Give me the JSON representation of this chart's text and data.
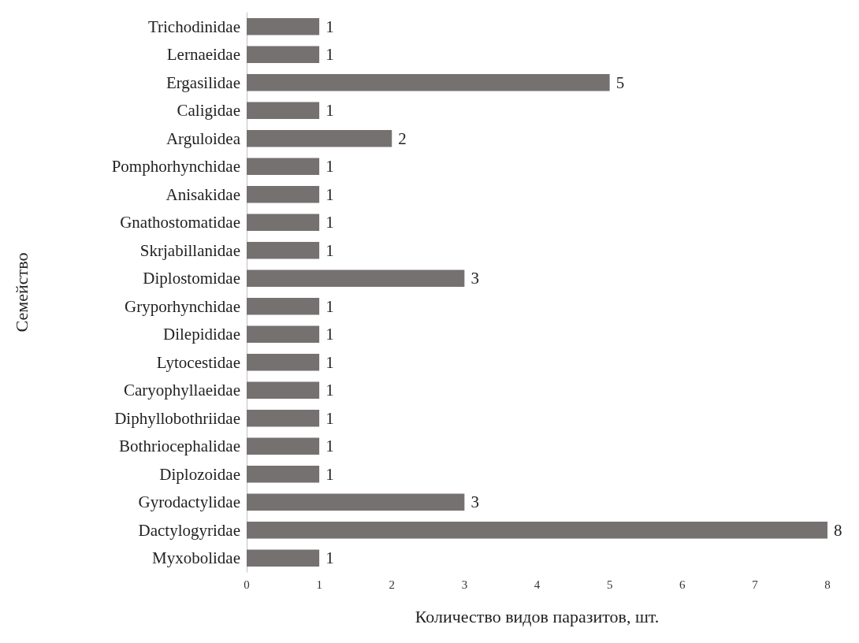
{
  "chart_data": {
    "type": "bar",
    "orientation": "horizontal",
    "xlabel": "Количество видов паразитов, шт.",
    "ylabel": "Семейство",
    "categories": [
      "Trichodinidae",
      "Lernaeidae",
      "Ergasilidae",
      "Caligidae",
      "Arguloidea",
      "Pomphorhynchidae",
      "Anisakidae",
      "Gnathostomatidae",
      "Skrjabillanidae",
      "Diplostomidae",
      "Gryporhynchidae",
      "Dilepididae",
      "Lytocestidae",
      "Caryophyllaeidae",
      "Diphyllobothriidae",
      "Bothriocephalidae",
      "Diplozoidae",
      "Gyrodactylidae",
      "Dactylogyridae",
      "Myxobolidae"
    ],
    "values": [
      1,
      1,
      5,
      1,
      2,
      1,
      1,
      1,
      1,
      3,
      1,
      1,
      1,
      1,
      1,
      1,
      1,
      3,
      8,
      1
    ],
    "color": "#767171",
    "xlim": [
      0,
      8
    ],
    "xticks": [
      0,
      1,
      2,
      3,
      4,
      5,
      6,
      7,
      8
    ],
    "grid": false,
    "data_labels": true
  }
}
